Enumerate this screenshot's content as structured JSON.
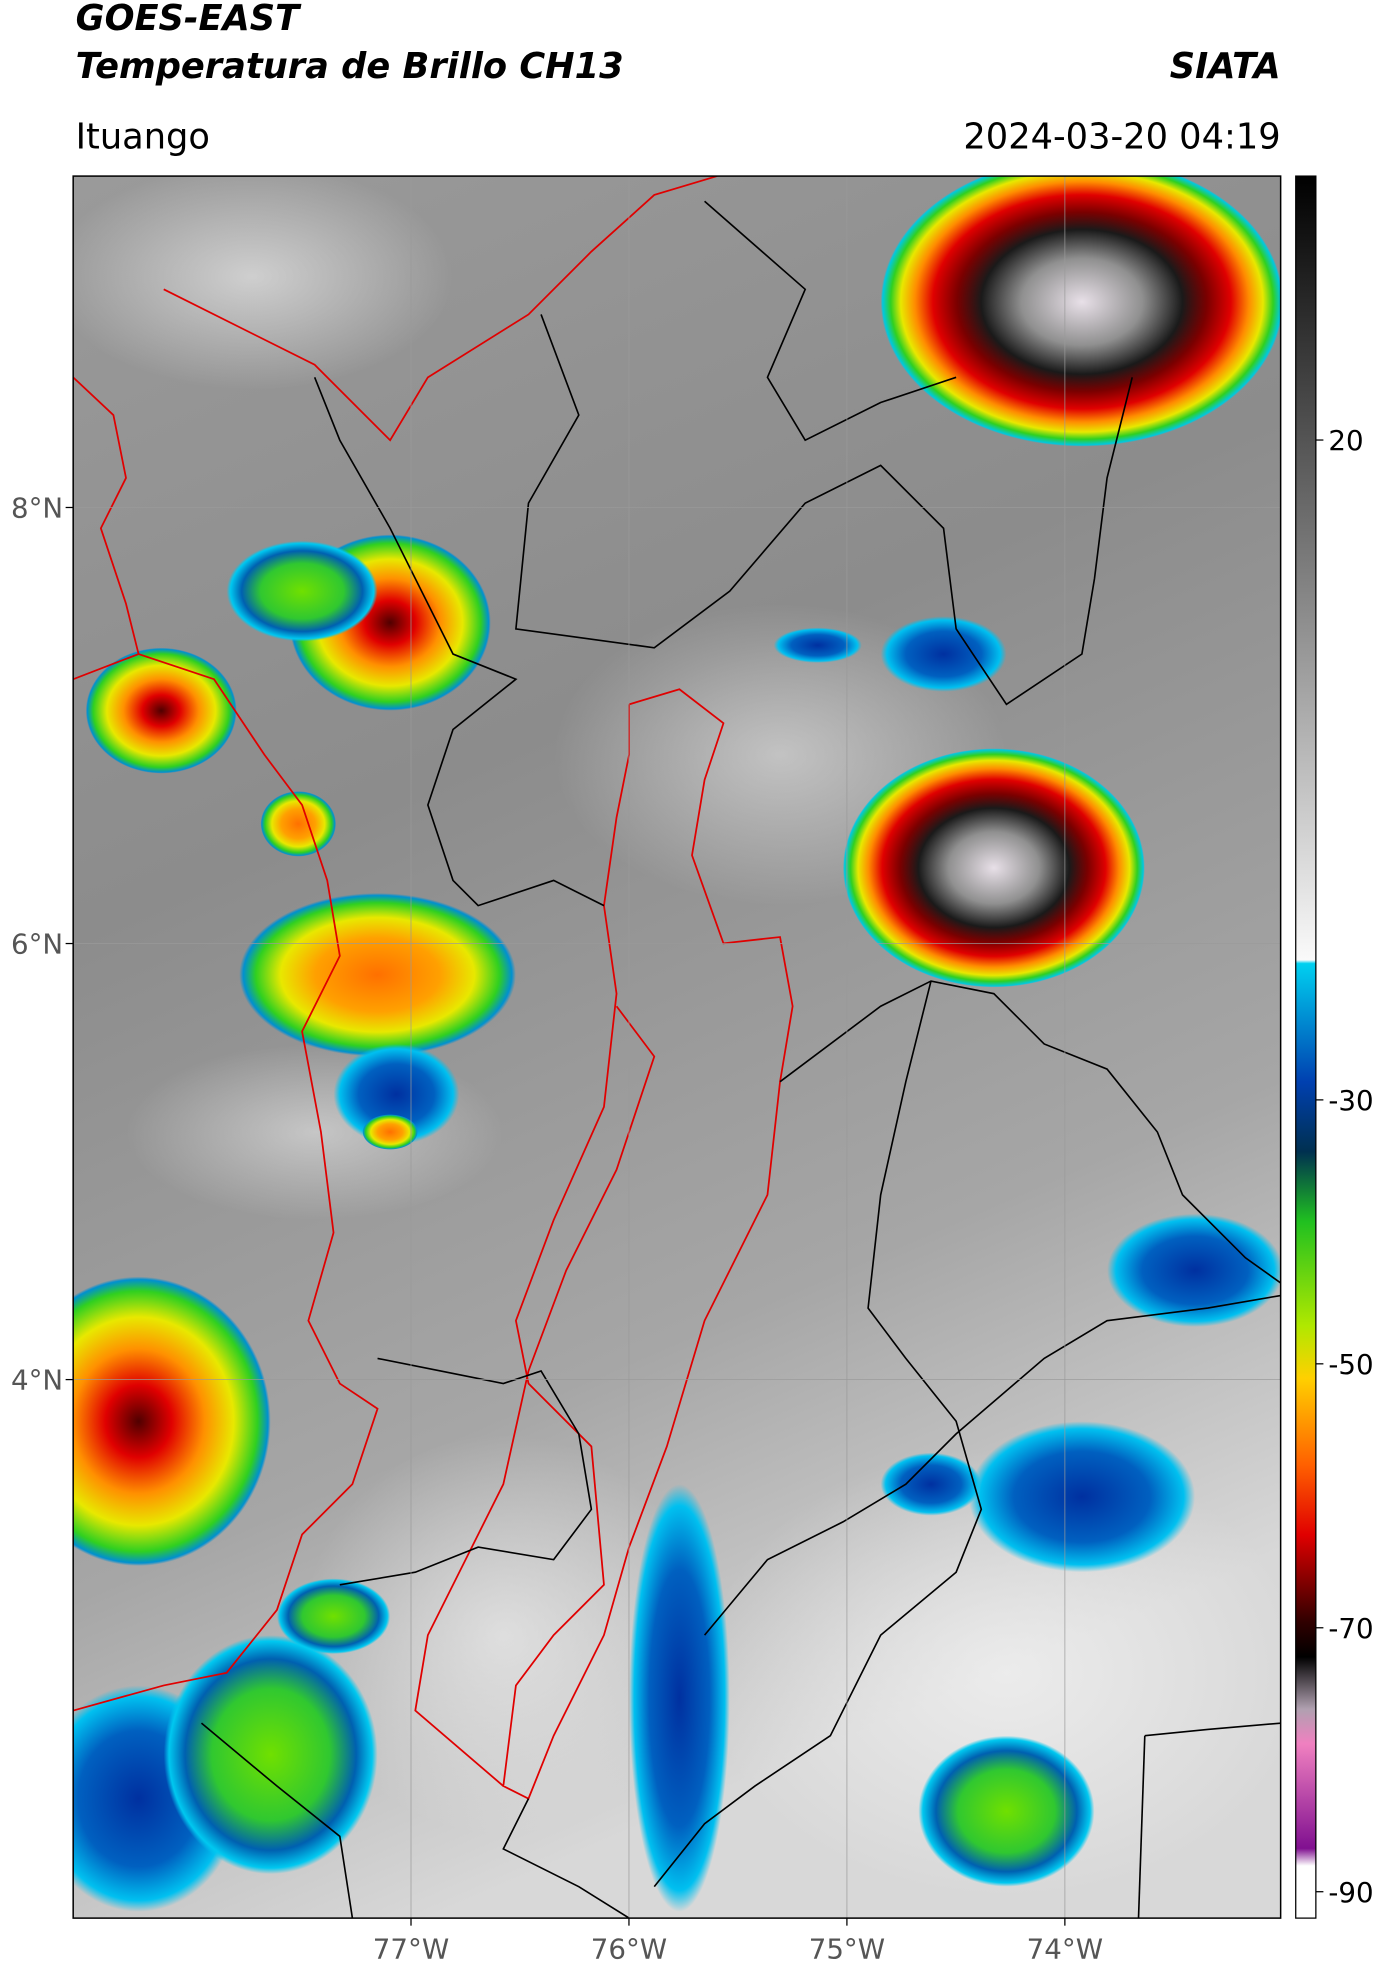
{
  "header": {
    "title": "GOES-EAST",
    "subtitle": "Temperatura de Brillo CH13",
    "brand": "SIATA",
    "location": "Ituango",
    "datetime": "2024-03-20 04:19"
  },
  "map": {
    "xlim": [
      -78.55,
      -73.01
    ],
    "ylim": [
      1.53,
      9.52
    ],
    "xticks": [
      {
        "value": -77,
        "label": "77°W"
      },
      {
        "value": -76,
        "label": "76°W"
      },
      {
        "value": -75,
        "label": "75°W"
      },
      {
        "value": -74,
        "label": "74°W"
      }
    ],
    "yticks": [
      {
        "value": 8,
        "label": "8°N"
      },
      {
        "value": 6,
        "label": "6°N"
      },
      {
        "value": 4,
        "label": "4°N"
      }
    ],
    "grid": true
  },
  "colorbar": {
    "clim": [
      -92,
      40
    ],
    "ticks": [
      20,
      -30,
      -50,
      -70,
      -90
    ]
  }
}
